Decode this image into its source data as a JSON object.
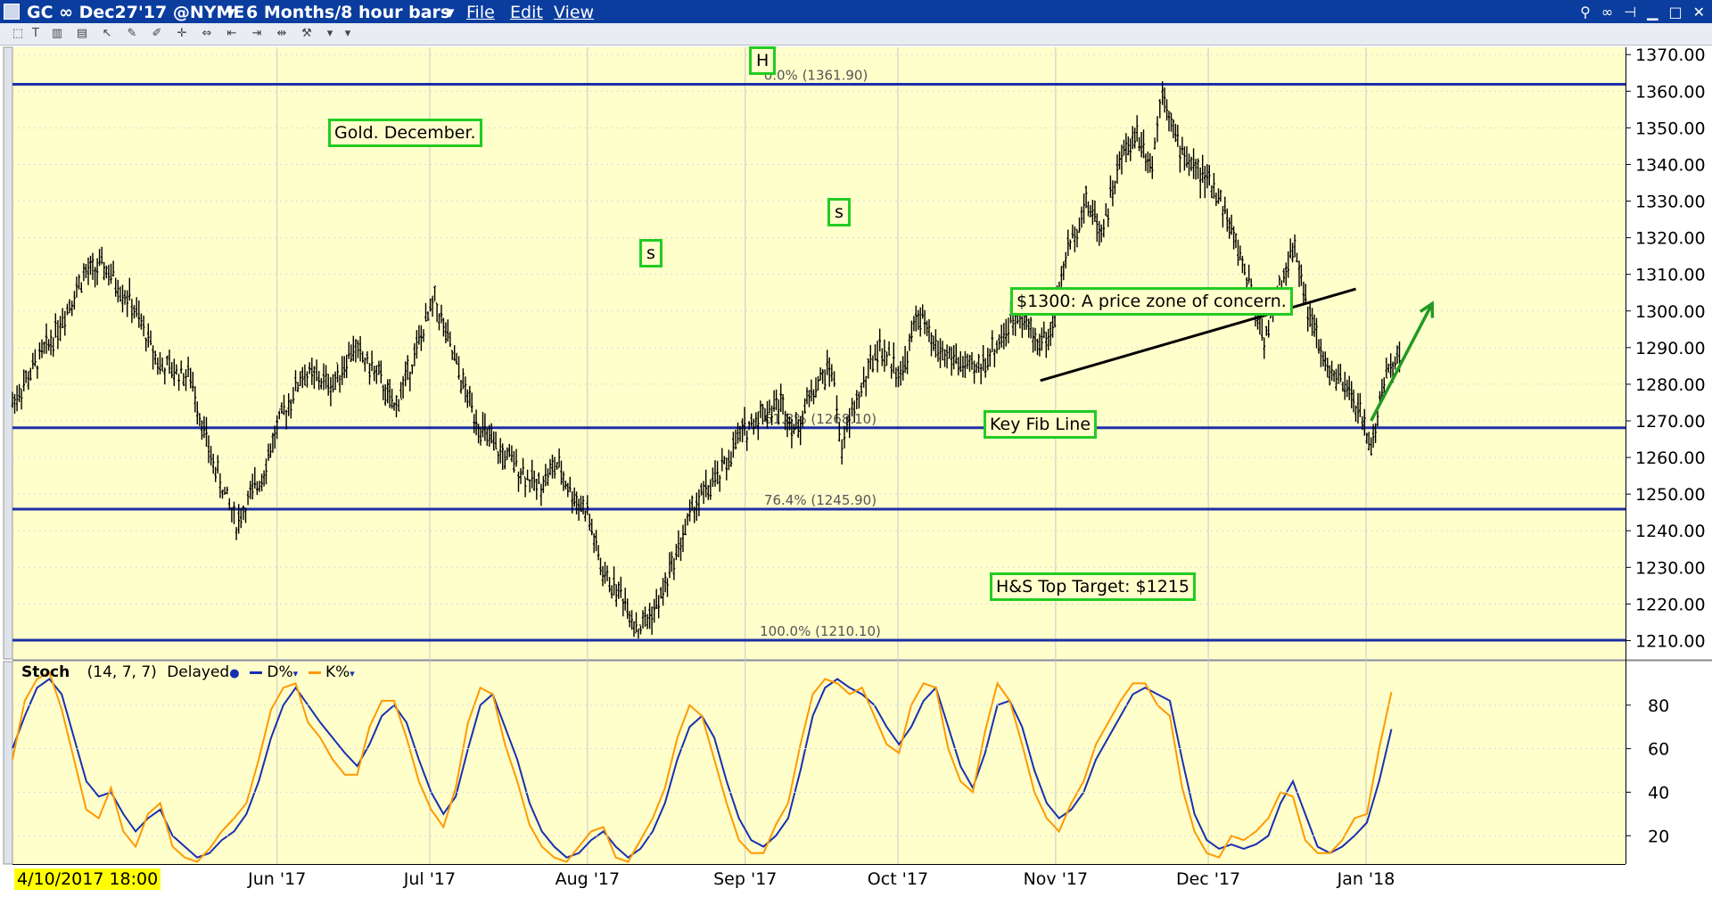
{
  "window": {
    "symbol": "GC ∞ Dec27'17 @NYME",
    "timeframe": "6 Months/8 hour bars",
    "menu": [
      "File",
      "Edit",
      "View"
    ]
  },
  "colors": {
    "chart_bg": "#ffffcc",
    "fib_line": "#1c2fa8",
    "d_line": "#1a2fb0",
    "k_line": "#ff9900",
    "annotation_border": "#22cc22",
    "arrow": "#229922"
  },
  "annotations": {
    "title": "Gold. December.",
    "head": "H",
    "left_shoulder": "s",
    "right_shoulder": "s",
    "price_zone": "$1300: A price zone of concern.",
    "key_fib": "Key Fib Line",
    "target": "H&S Top Target: $1215"
  },
  "stoch": {
    "name": "Stoch",
    "params": "(14, 7, 7)",
    "mode": "Delayed",
    "d_label": "D%",
    "k_label": "K%"
  },
  "time_axis": {
    "start_label": "4/10/2017 18:00",
    "months": [
      "Jun '17",
      "Jul '17",
      "Aug '17",
      "Sep '17",
      "Oct '17",
      "Nov '17",
      "Dec '17",
      "Jan '18"
    ]
  },
  "chart_data": [
    {
      "type": "candlestick",
      "title": "Gold. December.",
      "ylim": [
        1205,
        1372
      ],
      "y_ticks": [
        "1370.00",
        "1360.00",
        "1350.00",
        "1340.00",
        "1330.00",
        "1320.00",
        "1310.00",
        "1300.00",
        "1290.00",
        "1280.00",
        "1270.00",
        "1260.00",
        "1250.00",
        "1240.00",
        "1230.00",
        "1220.00",
        "1210.00"
      ],
      "fib_levels": [
        {
          "label": "0.0% (1361.90)",
          "value": 1361.9
        },
        {
          "label": "61.8% (1268.10)",
          "value": 1268.1
        },
        {
          "label": "76.4% (1245.90)",
          "value": 1245.9
        },
        {
          "label": "100.0% (1210.10)",
          "value": 1210.1
        }
      ],
      "price_path": [
        {
          "date": "2017-04-10",
          "price": 1275
        },
        {
          "date": "2017-04-18",
          "price": 1293
        },
        {
          "date": "2017-04-24",
          "price": 1310
        },
        {
          "date": "2017-04-28",
          "price": 1312
        },
        {
          "date": "2017-05-03",
          "price": 1303
        },
        {
          "date": "2017-05-09",
          "price": 1285
        },
        {
          "date": "2017-05-15",
          "price": 1282
        },
        {
          "date": "2017-05-19",
          "price": 1260
        },
        {
          "date": "2017-05-24",
          "price": 1242
        },
        {
          "date": "2017-05-29",
          "price": 1255
        },
        {
          "date": "2017-06-01",
          "price": 1268
        },
        {
          "date": "2017-06-06",
          "price": 1283
        },
        {
          "date": "2017-06-12",
          "price": 1280
        },
        {
          "date": "2017-06-16",
          "price": 1290
        },
        {
          "date": "2017-06-21",
          "price": 1282
        },
        {
          "date": "2017-06-24",
          "price": 1273
        },
        {
          "date": "2017-06-28",
          "price": 1288
        },
        {
          "date": "2017-07-02",
          "price": 1303
        },
        {
          "date": "2017-07-05",
          "price": 1290
        },
        {
          "date": "2017-07-08",
          "price": 1278
        },
        {
          "date": "2017-07-11",
          "price": 1268
        },
        {
          "date": "2017-07-14",
          "price": 1262
        },
        {
          "date": "2017-07-18",
          "price": 1258
        },
        {
          "date": "2017-07-22",
          "price": 1252
        },
        {
          "date": "2017-07-26",
          "price": 1258
        },
        {
          "date": "2017-07-29",
          "price": 1250
        },
        {
          "date": "2017-08-01",
          "price": 1245
        },
        {
          "date": "2017-08-04",
          "price": 1228
        },
        {
          "date": "2017-08-08",
          "price": 1222
        },
        {
          "date": "2017-08-11",
          "price": 1213
        },
        {
          "date": "2017-08-15",
          "price": 1220
        },
        {
          "date": "2017-08-18",
          "price": 1232
        },
        {
          "date": "2017-08-22",
          "price": 1247
        },
        {
          "date": "2017-08-27",
          "price": 1255
        },
        {
          "date": "2017-08-31",
          "price": 1266
        },
        {
          "date": "2017-09-04",
          "price": 1272
        },
        {
          "date": "2017-09-08",
          "price": 1275
        },
        {
          "date": "2017-09-11",
          "price": 1267
        },
        {
          "date": "2017-09-14",
          "price": 1278
        },
        {
          "date": "2017-09-18",
          "price": 1285
        },
        {
          "date": "2017-09-20",
          "price": 1262
        },
        {
          "date": "2017-09-22",
          "price": 1272
        },
        {
          "date": "2017-09-27",
          "price": 1290
        },
        {
          "date": "2017-10-02",
          "price": 1283
        },
        {
          "date": "2017-10-05",
          "price": 1300
        },
        {
          "date": "2017-10-08",
          "price": 1290
        },
        {
          "date": "2017-10-12",
          "price": 1287
        },
        {
          "date": "2017-10-16",
          "price": 1283
        },
        {
          "date": "2017-10-20",
          "price": 1290
        },
        {
          "date": "2017-10-25",
          "price": 1300
        },
        {
          "date": "2017-10-28",
          "price": 1292
        },
        {
          "date": "2017-10-31",
          "price": 1293
        },
        {
          "date": "2017-11-03",
          "price": 1315
        },
        {
          "date": "2017-11-07",
          "price": 1330
        },
        {
          "date": "2017-11-10",
          "price": 1322
        },
        {
          "date": "2017-11-14",
          "price": 1342
        },
        {
          "date": "2017-11-17",
          "price": 1349
        },
        {
          "date": "2017-11-20",
          "price": 1340
        },
        {
          "date": "2017-11-22",
          "price": 1361.9
        },
        {
          "date": "2017-11-25",
          "price": 1345
        },
        {
          "date": "2017-11-29",
          "price": 1338
        },
        {
          "date": "2017-12-03",
          "price": 1332
        },
        {
          "date": "2017-12-06",
          "price": 1320
        },
        {
          "date": "2017-12-09",
          "price": 1308
        },
        {
          "date": "2017-12-12",
          "price": 1292
        },
        {
          "date": "2017-12-15",
          "price": 1306
        },
        {
          "date": "2017-12-18",
          "price": 1318
        },
        {
          "date": "2017-12-21",
          "price": 1298
        },
        {
          "date": "2017-12-24",
          "price": 1285
        },
        {
          "date": "2017-12-27",
          "price": 1280
        },
        {
          "date": "2017-12-30",
          "price": 1275
        },
        {
          "date": "2018-01-02",
          "price": 1263
        },
        {
          "date": "2018-01-05",
          "price": 1283
        },
        {
          "date": "2018-01-08",
          "price": 1290
        }
      ],
      "trendline": [
        {
          "date": "2017-10-29",
          "price": 1281
        },
        {
          "date": "2017-12-30",
          "price": 1306
        }
      ],
      "arrow": [
        {
          "date": "2018-01-02",
          "price": 1270
        },
        {
          "date": "2018-01-14",
          "price": 1302
        }
      ]
    },
    {
      "type": "line",
      "title": "Stoch (14, 7, 7)",
      "ylim": [
        7,
        100
      ],
      "y_ticks": [
        "80",
        "60",
        "40",
        "20"
      ],
      "series": [
        {
          "name": "D%",
          "values": [
            60,
            75,
            88,
            92,
            85,
            65,
            45,
            38,
            40,
            30,
            22,
            28,
            32,
            20,
            15,
            10,
            12,
            18,
            22,
            30,
            45,
            65,
            80,
            88,
            80,
            72,
            65,
            58,
            52,
            62,
            75,
            80,
            72,
            55,
            40,
            30,
            38,
            60,
            80,
            85,
            70,
            55,
            35,
            22,
            15,
            10,
            12,
            18,
            22,
            15,
            10,
            14,
            22,
            35,
            55,
            70,
            75,
            65,
            45,
            28,
            18,
            15,
            20,
            28,
            50,
            75,
            88,
            92,
            88,
            85,
            80,
            70,
            62,
            70,
            82,
            88,
            70,
            52,
            42,
            58,
            80,
            82,
            70,
            50,
            35,
            28,
            32,
            40,
            55,
            65,
            75,
            85,
            88,
            85,
            82,
            55,
            30,
            18,
            14,
            16,
            14,
            16,
            20,
            35,
            45,
            30,
            15,
            12,
            15,
            20,
            26,
            45,
            69
          ]
        },
        {
          "name": "K%",
          "values": [
            55,
            82,
            92,
            95,
            78,
            55,
            32,
            28,
            42,
            22,
            15,
            30,
            35,
            15,
            10,
            8,
            14,
            22,
            28,
            35,
            55,
            78,
            88,
            90,
            72,
            65,
            55,
            48,
            48,
            70,
            82,
            82,
            65,
            45,
            32,
            24,
            42,
            72,
            88,
            85,
            62,
            45,
            25,
            15,
            10,
            8,
            15,
            22,
            24,
            10,
            8,
            18,
            28,
            42,
            65,
            80,
            75,
            55,
            35,
            18,
            12,
            12,
            25,
            35,
            62,
            85,
            92,
            90,
            85,
            88,
            75,
            62,
            58,
            80,
            90,
            88,
            60,
            45,
            40,
            68,
            90,
            82,
            62,
            40,
            28,
            22,
            35,
            45,
            62,
            72,
            82,
            90,
            90,
            80,
            75,
            42,
            22,
            12,
            10,
            20,
            18,
            22,
            28,
            40,
            38,
            18,
            12,
            12,
            18,
            28,
            30,
            60,
            86
          ]
        }
      ]
    }
  ]
}
